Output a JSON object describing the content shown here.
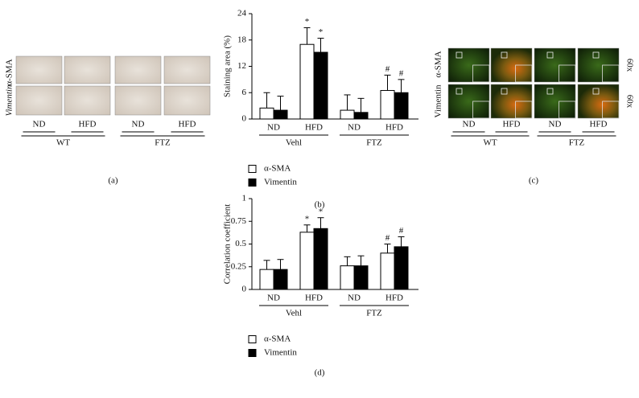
{
  "panel_a": {
    "row_labels": [
      "Vimentin",
      "α-SMA"
    ],
    "columns": [
      "ND",
      "HFD",
      "ND",
      "HFD"
    ],
    "groups": [
      "WT",
      "FTZ"
    ],
    "label": "(a)"
  },
  "panel_c": {
    "row_labels": [
      "α-SMA",
      "Vimentin"
    ],
    "magnification": [
      "60x",
      "60x"
    ],
    "columns": [
      "ND",
      "HFD",
      "ND",
      "HFD"
    ],
    "groups": [
      "WT",
      "FTZ"
    ],
    "label": "(c)"
  },
  "chart_data": [
    {
      "type": "bar",
      "label": "(b)",
      "y_label": "Staining area (%)",
      "categories": [
        "ND",
        "HFD",
        "ND",
        "HFD"
      ],
      "groups": [
        "Vehl",
        "FTZ"
      ],
      "ylim": [
        0,
        24
      ],
      "yticks": [
        0,
        6,
        12,
        18,
        24
      ],
      "series": [
        {
          "name": "α-SMA",
          "color": "#ffffff",
          "values": [
            2.5,
            17,
            2,
            6.5
          ],
          "errors": [
            3.5,
            3.8,
            3.5,
            3.5
          ],
          "markers": [
            null,
            "*",
            null,
            "#"
          ]
        },
        {
          "name": "Vimentin",
          "color": "#000000",
          "values": [
            2,
            15.2,
            1.5,
            6
          ],
          "errors": [
            3.2,
            3.2,
            3.2,
            3
          ],
          "markers": [
            null,
            "*",
            null,
            "#"
          ]
        }
      ]
    },
    {
      "type": "bar",
      "label": "(d)",
      "y_label": "Correlation coefficient",
      "categories": [
        "ND",
        "HFD",
        "ND",
        "HFD"
      ],
      "groups": [
        "Vehl",
        "FTZ"
      ],
      "ylim": [
        0,
        1
      ],
      "yticks": [
        0,
        0.25,
        0.5,
        0.75,
        1
      ],
      "series": [
        {
          "name": "α-SMA",
          "color": "#ffffff",
          "values": [
            0.22,
            0.63,
            0.26,
            0.4
          ],
          "errors": [
            0.1,
            0.08,
            0.1,
            0.1
          ],
          "markers": [
            null,
            "*",
            null,
            "#"
          ]
        },
        {
          "name": "Vimentin",
          "color": "#000000",
          "values": [
            0.22,
            0.67,
            0.26,
            0.47
          ],
          "errors": [
            0.11,
            0.12,
            0.11,
            0.11
          ],
          "markers": [
            null,
            "*",
            null,
            "#"
          ]
        }
      ]
    }
  ]
}
